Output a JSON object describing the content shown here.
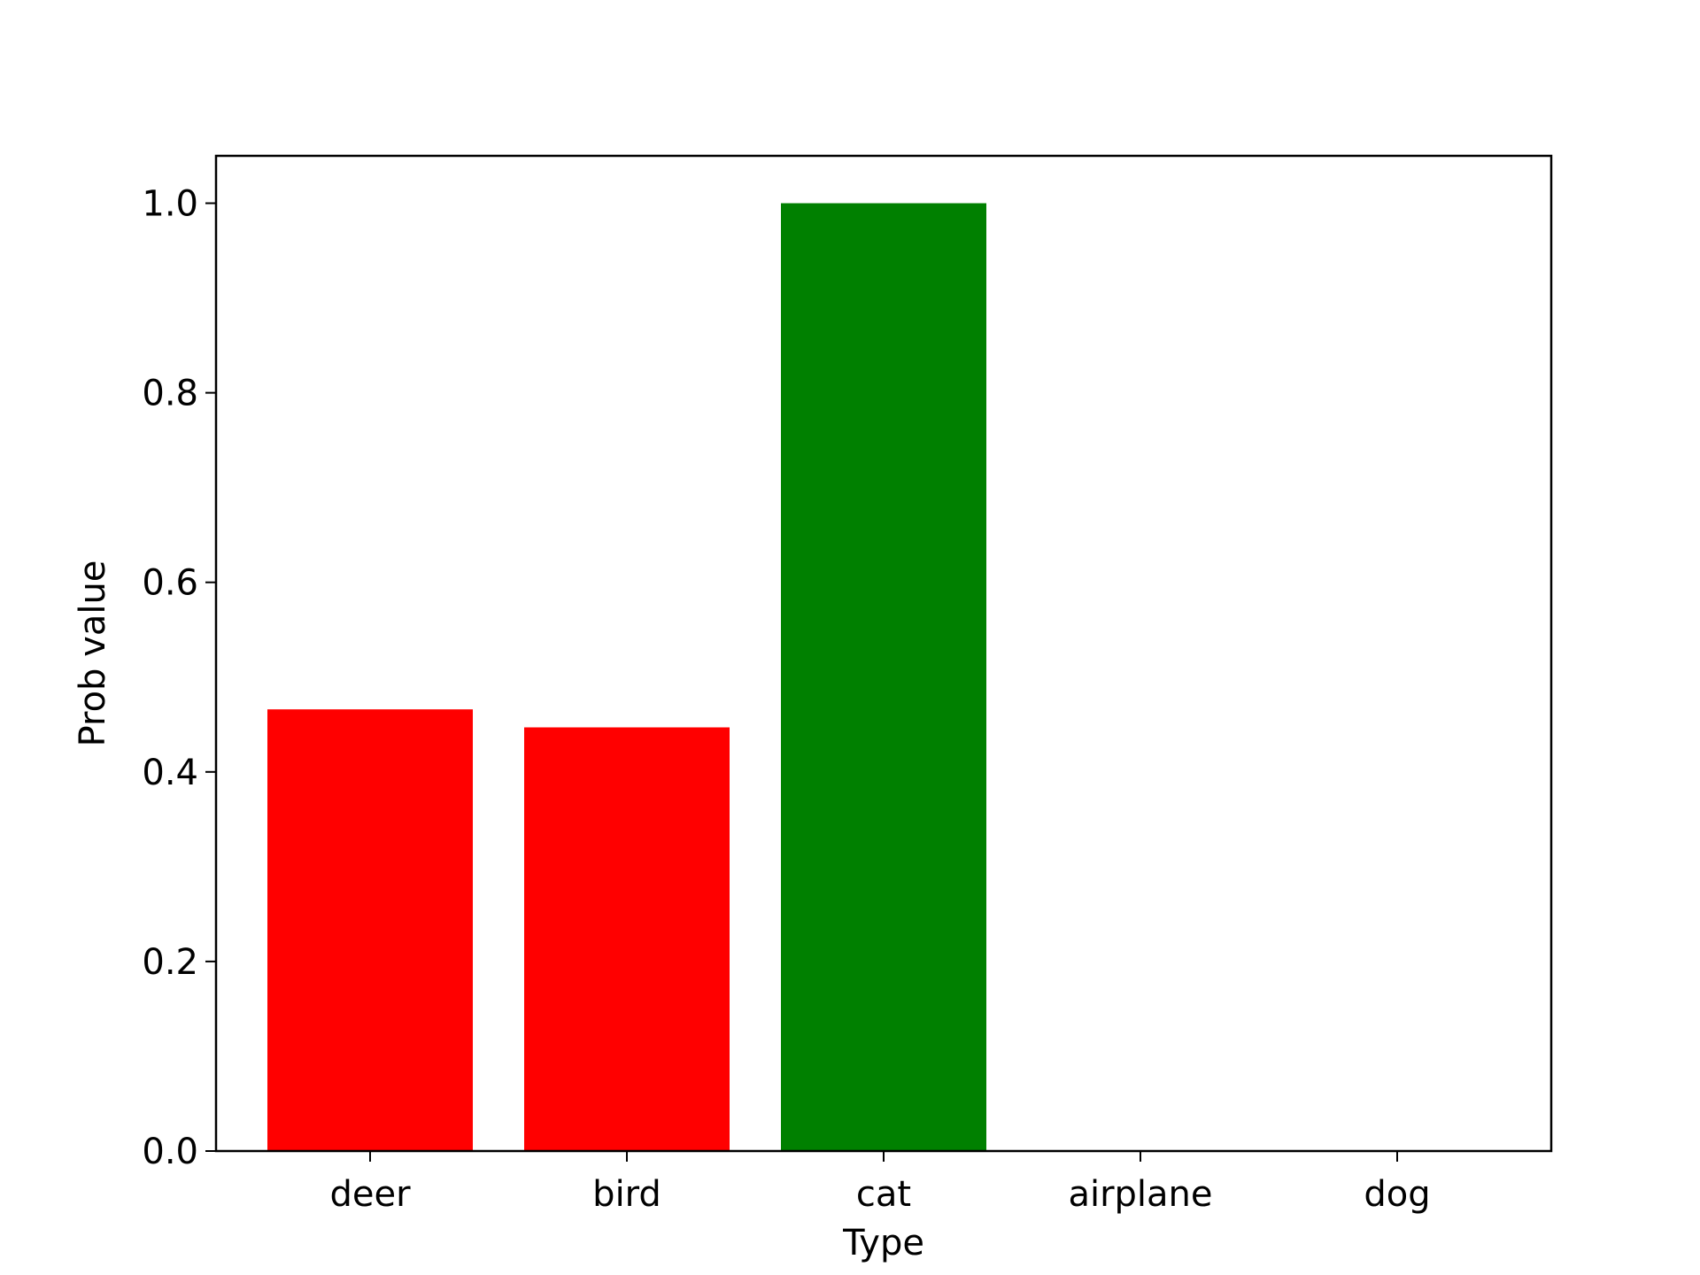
{
  "chart_data": {
    "type": "bar",
    "title": "",
    "xlabel": "Type",
    "ylabel": "Prob value",
    "categories": [
      "deer",
      "bird",
      "cat",
      "airplane",
      "dog"
    ],
    "values": [
      0.466,
      0.447,
      1.0,
      0.0,
      0.0
    ],
    "bar_colors": [
      "#ff0000",
      "#ff0000",
      "#008000",
      "#ff0000",
      "#ff0000"
    ],
    "ylim": [
      0,
      1.05
    ],
    "yticks": [
      0.0,
      0.2,
      0.4,
      0.6,
      0.8,
      1.0
    ],
    "ytick_labels": [
      "0.0",
      "0.2",
      "0.4",
      "0.6",
      "0.8",
      "1.0"
    ],
    "grid": false,
    "legend": false
  }
}
